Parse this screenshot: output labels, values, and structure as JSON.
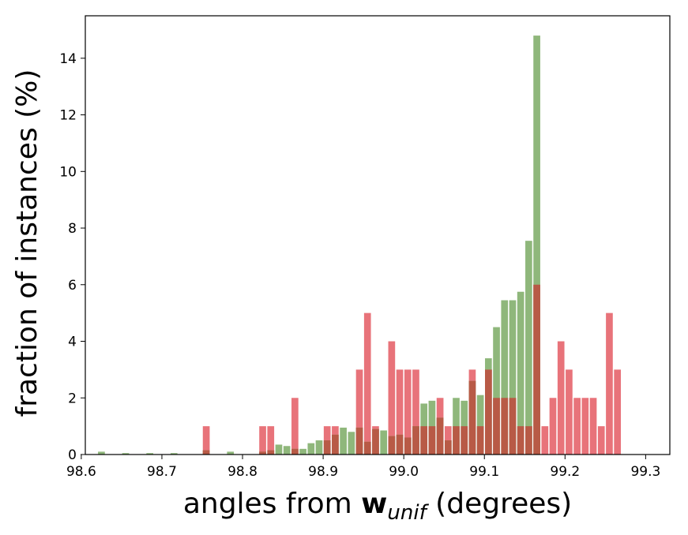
{
  "chart_data": {
    "type": "bar",
    "xlabel_prefix": "angles from ",
    "xlabel_bold": "w",
    "xlabel_sub": "unif",
    "xlabel_suffix": " (degrees)",
    "ylabel": "fraction of instances (%)",
    "xlim": [
      98.605,
      99.33
    ],
    "ylim": [
      0,
      15.5
    ],
    "xticks": [
      98.6,
      98.7,
      98.8,
      98.9,
      99.0,
      99.1,
      99.2,
      99.3
    ],
    "xtick_labels": [
      "98.6",
      "98.7",
      "98.8",
      "98.9",
      "99.0",
      "99.1",
      "99.2",
      "99.3"
    ],
    "yticks": [
      0,
      2,
      4,
      6,
      8,
      10,
      12,
      14
    ],
    "ytick_labels": [
      "0",
      "2",
      "4",
      "6",
      "8",
      "10",
      "12",
      "14"
    ],
    "grid": false,
    "bar_width": 0.0085,
    "colors": {
      "red": "#e8737a",
      "green": "#8fb77b",
      "overlap": "#b85a46"
    },
    "series": [
      {
        "color_key": "red",
        "x": [
          98.755,
          98.825,
          98.835,
          98.865,
          98.905,
          98.915,
          98.945,
          98.955,
          98.965,
          98.985,
          98.995,
          99.005,
          99.015,
          99.025,
          99.035,
          99.045,
          99.055,
          99.065,
          99.075,
          99.085,
          99.095,
          99.105,
          99.115,
          99.125,
          99.135,
          99.145,
          99.155,
          99.165,
          99.175,
          99.185,
          99.195,
          99.205,
          99.215,
          99.225,
          99.235,
          99.245,
          99.255,
          99.265,
          99.275
        ],
        "values": [
          1.0,
          1.0,
          1.0,
          2.0,
          1.0,
          1.0,
          3.0,
          5.0,
          1.0,
          4.0,
          3.0,
          3.0,
          3.0,
          1.0,
          1.0,
          2.0,
          1.0,
          1.0,
          1.0,
          3.0,
          1.0,
          3.0,
          2.0,
          2.0,
          2.0,
          1.0,
          1.0,
          6.0,
          1.0,
          2.0,
          4.0,
          3.0,
          2.0,
          2.0,
          2.0,
          1.0,
          5.0,
          3.0,
          0.0
        ]
      },
      {
        "color_key": "green",
        "x": [
          98.625,
          98.655,
          98.685,
          98.715,
          98.755,
          98.785,
          98.825,
          98.835,
          98.845,
          98.855,
          98.865,
          98.875,
          98.885,
          98.895,
          98.905,
          98.915,
          98.925,
          98.935,
          98.945,
          98.955,
          98.965,
          98.975,
          98.985,
          98.995,
          99.005,
          99.015,
          99.025,
          99.035,
          99.045,
          99.055,
          99.065,
          99.075,
          99.085,
          99.095,
          99.105,
          99.115,
          99.125,
          99.135,
          99.145,
          99.155,
          99.165,
          99.175,
          99.185,
          99.195,
          99.205,
          99.215,
          99.225,
          99.235,
          99.245,
          99.255,
          99.265,
          99.275
        ],
        "values": [
          0.1,
          0.05,
          0.05,
          0.05,
          0.15,
          0.1,
          0.1,
          0.15,
          0.35,
          0.3,
          0.2,
          0.2,
          0.4,
          0.5,
          0.5,
          0.7,
          0.95,
          0.8,
          0.95,
          0.45,
          0.9,
          0.85,
          0.65,
          0.7,
          0.6,
          1.0,
          1.8,
          1.9,
          1.3,
          0.5,
          2.0,
          1.9,
          2.6,
          2.1,
          3.4,
          4.5,
          5.45,
          5.45,
          5.75,
          7.55,
          14.8,
          0.0,
          0.0,
          0.0,
          0.0,
          0.0,
          0.0,
          0.0,
          0.0,
          0.0,
          0.0,
          0.0
        ]
      }
    ]
  }
}
